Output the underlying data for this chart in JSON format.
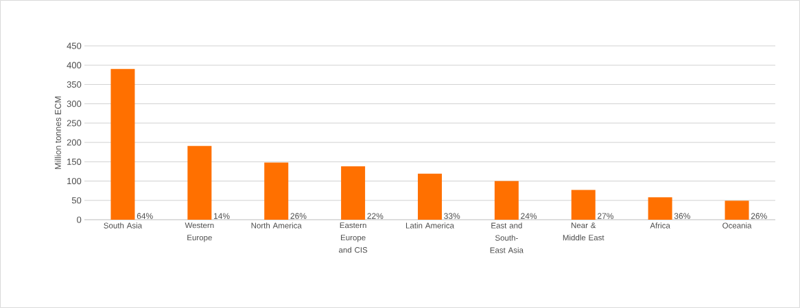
{
  "chart_data": {
    "type": "bar",
    "ylabel": "Million tonnes ECM",
    "categories": [
      "South Asia",
      "Western Europe",
      "North America",
      "Eastern Europe and CIS",
      "Latin America",
      "East and South-East Asia",
      "Near & Middle East",
      "Africa",
      "Oceania"
    ],
    "values": [
      390,
      191,
      148,
      138,
      119,
      100,
      77,
      58,
      49
    ],
    "color": "#ff7000",
    "ylim": [
      0,
      450
    ],
    "yticks": [
      0,
      50,
      100,
      150,
      200,
      250,
      300,
      350,
      400,
      450
    ],
    "grid": "y",
    "annotations": [
      "64%",
      "14%",
      "26%",
      "22%",
      "33%",
      "24%",
      "27%",
      "36%",
      "26%"
    ]
  }
}
